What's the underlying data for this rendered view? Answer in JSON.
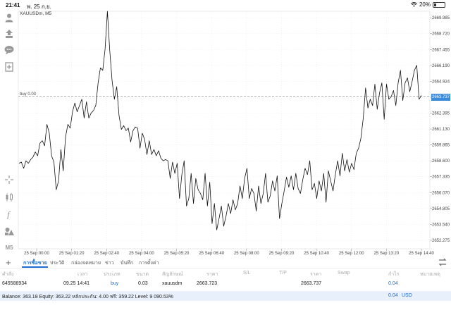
{
  "status": {
    "time": "21:41",
    "date": "พ. 25 ก.ย.",
    "battery": "20%",
    "battery_level": 0.2
  },
  "chart": {
    "title": "XAUUSDm, M5",
    "buy_label": "buy 0.03",
    "current_price_label": "2663.737"
  },
  "toolbar_icons": [
    "user-icon",
    "transfer-icon",
    "chat-icon",
    "add-page-icon",
    "crosshair-icon",
    "candles-icon",
    "function-icon",
    "objects-icon",
    "timeframe-icon"
  ],
  "toolbar_timeframe": "M5",
  "chart_data": {
    "type": "line",
    "title": "XAUUSDm, M5",
    "x_labels": [
      "25 Sep 00:00",
      "25 Sep 01:20",
      "25 Sep 02:40",
      "25 Sep 04:00",
      "25 Sep 05:20",
      "25 Sep 06:40",
      "25 Sep 08:00",
      "25 Sep 09:20",
      "25 Sep 10:40",
      "25 Sep 12:00",
      "25 Sep 13:20",
      "25 Sep 14:40"
    ],
    "y_ticks": [
      "2669.985",
      "2668.720",
      "2667.455",
      "2666.190",
      "2664.924",
      "2663.659",
      "2662.395",
      "2661.130",
      "2659.865",
      "2658.600",
      "2657.335",
      "2656.070",
      "2654.805",
      "2653.540",
      "2652.275"
    ],
    "ylim": [
      2651.6,
      2670.5
    ],
    "buy_level": 2663.737,
    "values": [
      2658.4,
      2658.5,
      2658.0,
      2658.6,
      2658.4,
      2658.7,
      2658.9,
      2659.3,
      2659.0,
      2660.0,
      2660.2,
      2659.8,
      2661.5,
      2660.8,
      2659.0,
      2658.5,
      2656.3,
      2657.0,
      2659.5,
      2657.8,
      2660.5,
      2661.5,
      2661.2,
      2662.5,
      2663.2,
      2662.5,
      2663.0,
      2663.5,
      2662.0,
      2663.3,
      2662.0,
      2662.4,
      2662.6,
      2663.0,
      2664.8,
      2666.0,
      2665.8,
      2667.5,
      2670.5,
      2667.4,
      2665.0,
      2663.5,
      2664.5,
      2662.2,
      2661.1,
      2661.4,
      2661.0,
      2661.2,
      2660.1,
      2661.0,
      2661.3,
      2661.2,
      2659.6,
      2660.8,
      2660.3,
      2659.1,
      2660.2,
      2659.1,
      2659.5,
      2659.0,
      2659.4,
      2658.8,
      2658.6,
      2658.7,
      2658.6,
      2657.2,
      2658.5,
      2657.6,
      2658.4,
      2655.6,
      2657.5,
      2658.6,
      2655.0,
      2655.6,
      2657.6,
      2655.2,
      2657.2,
      2656.3,
      2656.0,
      2655.5,
      2657.6,
      2655.0,
      2656.9,
      2653.6,
      2655.2,
      2653.1,
      2654.0,
      2655.0,
      2653.4,
      2654.2,
      2655.2,
      2654.4,
      2655.5,
      2654.7,
      2655.2,
      2656.6,
      2655.6,
      2657.2,
      2658.0,
      2655.6,
      2656.4,
      2656.0,
      2654.6,
      2656.6,
      2655.2,
      2656.0,
      2657.6,
      2655.3,
      2655.8,
      2657.0,
      2656.2,
      2657.4,
      2654.0,
      2655.2,
      2656.2,
      2657.3,
      2656.5,
      2657.4,
      2656.3,
      2657.6,
      2656.4,
      2656.0,
      2657.1,
      2658.0,
      2657.5,
      2658.6,
      2656.3,
      2656.8,
      2655.6,
      2657.0,
      2656.2,
      2657.6,
      2655.3,
      2657.8,
      2657.0,
      2656.2,
      2657.5,
      2658.6,
      2657.4,
      2659.2,
      2657.8,
      2658.7,
      2657.7,
      2658.4,
      2657.9,
      2659.2,
      2659.6,
      2660.4,
      2662.0,
      2664.4,
      2662.8,
      2663.5,
      2663.0,
      2664.7,
      2662.7,
      2664.0,
      2664.8,
      2661.9,
      2664.7,
      2663.5,
      2663.7,
      2664.2,
      2663.0,
      2664.8,
      2665.8,
      2663.4,
      2664.8,
      2665.2,
      2664.1,
      2664.9,
      2665.8,
      2666.2,
      2663.5,
      2663.8
    ]
  },
  "tabs": {
    "add": "+",
    "items": [
      "การซื้อขาย",
      "ประวัติ",
      "กล่องจดหมาย",
      "ข่าว",
      "บันทึก",
      "การตั้งค่า"
    ],
    "active": 0
  },
  "columns": [
    "คำสั่ง",
    "เวลา",
    "ประเภท",
    "ขนาด",
    "สัญลักษณ์",
    "ราคา",
    "S/L",
    "T/P",
    "ราคา",
    "Swap",
    "กำไร",
    "หมายเหตุ"
  ],
  "order": {
    "ticket": "645588934",
    "time": "09.25 14:41",
    "type": "buy",
    "volume": "0.03",
    "symbol": "xauusdm",
    "open_price": "2663.723",
    "sl": "",
    "tp": "",
    "price": "2663.737",
    "swap": "",
    "profit": "0.04",
    "comment": ""
  },
  "balance": {
    "text": "Balance: 363.18 Equity: 363.22 หลักประกัน: 4.00 ฟรี: 359.22 Level: 9 090.53%",
    "profit": "0.04",
    "currency": "USD"
  },
  "colors": {
    "accent": "#1e6fd1",
    "price_box": "#3c8bd9",
    "line": "#111111",
    "grid": "#e0e0e0"
  }
}
